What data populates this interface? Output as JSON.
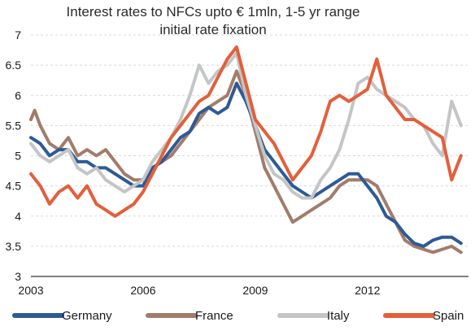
{
  "chart_data": {
    "type": "line",
    "title": "Interest rates to NFCs  upto € 1mln,  1-5 yr range",
    "subtitle": "initial  rate fixation",
    "xlabel": "",
    "ylabel": "",
    "x_ticks": [
      "2003",
      "2006",
      "2009",
      "2012"
    ],
    "y_ticks": [
      "3",
      "3.5",
      "4",
      "4.5",
      "5",
      "5.5",
      "6",
      "6.5",
      "7"
    ],
    "xlim": [
      2003.0,
      2014.7
    ],
    "ylim": [
      3,
      7
    ],
    "grid": "horizontal",
    "legend_position": "bottom",
    "series": [
      {
        "name": "Germany",
        "color": "#2e5a96",
        "points": [
          [
            2003.0,
            5.3
          ],
          [
            2003.25,
            5.2
          ],
          [
            2003.5,
            5.0
          ],
          [
            2003.75,
            5.1
          ],
          [
            2004.0,
            5.1
          ],
          [
            2004.25,
            4.9
          ],
          [
            2004.5,
            4.9
          ],
          [
            2004.75,
            4.8
          ],
          [
            2005.0,
            4.8
          ],
          [
            2005.25,
            4.7
          ],
          [
            2005.5,
            4.6
          ],
          [
            2005.75,
            4.5
          ],
          [
            2006.0,
            4.5
          ],
          [
            2006.25,
            4.8
          ],
          [
            2006.5,
            4.9
          ],
          [
            2006.75,
            5.1
          ],
          [
            2007.0,
            5.3
          ],
          [
            2007.25,
            5.4
          ],
          [
            2007.5,
            5.7
          ],
          [
            2007.75,
            5.8
          ],
          [
            2008.0,
            5.7
          ],
          [
            2008.25,
            5.8
          ],
          [
            2008.5,
            6.2
          ],
          [
            2008.75,
            5.9
          ],
          [
            2009.0,
            5.5
          ],
          [
            2009.25,
            5.1
          ],
          [
            2009.5,
            4.9
          ],
          [
            2009.75,
            4.7
          ],
          [
            2010.0,
            4.5
          ],
          [
            2010.25,
            4.4
          ],
          [
            2010.5,
            4.3
          ],
          [
            2010.75,
            4.4
          ],
          [
            2011.0,
            4.5
          ],
          [
            2011.25,
            4.6
          ],
          [
            2011.5,
            4.7
          ],
          [
            2011.75,
            4.7
          ],
          [
            2012.0,
            4.5
          ],
          [
            2012.25,
            4.3
          ],
          [
            2012.5,
            4.0
          ],
          [
            2012.75,
            3.9
          ],
          [
            2013.0,
            3.7
          ],
          [
            2013.25,
            3.55
          ],
          [
            2013.5,
            3.5
          ],
          [
            2013.75,
            3.6
          ],
          [
            2014.0,
            3.65
          ],
          [
            2014.25,
            3.65
          ],
          [
            2014.5,
            3.55
          ]
        ]
      },
      {
        "name": "France",
        "color": "#a27c6b",
        "points": [
          [
            2003.0,
            5.6
          ],
          [
            2003.1,
            5.75
          ],
          [
            2003.25,
            5.5
          ],
          [
            2003.5,
            5.2
          ],
          [
            2003.75,
            5.1
          ],
          [
            2004.0,
            5.3
          ],
          [
            2004.25,
            5.0
          ],
          [
            2004.5,
            5.1
          ],
          [
            2004.75,
            5.0
          ],
          [
            2005.0,
            5.1
          ],
          [
            2005.25,
            4.9
          ],
          [
            2005.5,
            4.7
          ],
          [
            2005.75,
            4.6
          ],
          [
            2006.0,
            4.6
          ],
          [
            2006.25,
            4.8
          ],
          [
            2006.5,
            4.9
          ],
          [
            2006.75,
            5.0
          ],
          [
            2007.0,
            5.2
          ],
          [
            2007.25,
            5.4
          ],
          [
            2007.5,
            5.6
          ],
          [
            2007.75,
            5.8
          ],
          [
            2008.0,
            5.9
          ],
          [
            2008.25,
            6.0
          ],
          [
            2008.5,
            6.4
          ],
          [
            2008.75,
            6.0
          ],
          [
            2009.0,
            5.4
          ],
          [
            2009.25,
            4.8
          ],
          [
            2009.5,
            4.5
          ],
          [
            2009.75,
            4.2
          ],
          [
            2010.0,
            3.9
          ],
          [
            2010.25,
            4.0
          ],
          [
            2010.5,
            4.1
          ],
          [
            2010.75,
            4.2
          ],
          [
            2011.0,
            4.3
          ],
          [
            2011.25,
            4.5
          ],
          [
            2011.5,
            4.6
          ],
          [
            2011.75,
            4.6
          ],
          [
            2012.0,
            4.6
          ],
          [
            2012.25,
            4.5
          ],
          [
            2012.5,
            4.2
          ],
          [
            2012.75,
            3.9
          ],
          [
            2013.0,
            3.6
          ],
          [
            2013.25,
            3.5
          ],
          [
            2013.5,
            3.45
          ],
          [
            2013.75,
            3.4
          ],
          [
            2014.0,
            3.45
          ],
          [
            2014.25,
            3.5
          ],
          [
            2014.5,
            3.4
          ]
        ]
      },
      {
        "name": "Italy",
        "color": "#c3c5c7",
        "points": [
          [
            2003.0,
            5.2
          ],
          [
            2003.25,
            5.0
          ],
          [
            2003.5,
            4.9
          ],
          [
            2003.75,
            5.0
          ],
          [
            2004.0,
            5.1
          ],
          [
            2004.25,
            4.8
          ],
          [
            2004.5,
            4.7
          ],
          [
            2004.75,
            4.8
          ],
          [
            2005.0,
            4.6
          ],
          [
            2005.25,
            4.5
          ],
          [
            2005.5,
            4.4
          ],
          [
            2005.75,
            4.5
          ],
          [
            2006.0,
            4.6
          ],
          [
            2006.25,
            4.9
          ],
          [
            2006.5,
            5.1
          ],
          [
            2006.75,
            5.3
          ],
          [
            2007.0,
            5.6
          ],
          [
            2007.25,
            6.0
          ],
          [
            2007.5,
            6.5
          ],
          [
            2007.75,
            6.2
          ],
          [
            2008.0,
            6.4
          ],
          [
            2008.25,
            6.5
          ],
          [
            2008.5,
            6.7
          ],
          [
            2008.75,
            6.0
          ],
          [
            2009.0,
            5.5
          ],
          [
            2009.25,
            5.0
          ],
          [
            2009.5,
            4.7
          ],
          [
            2009.75,
            4.6
          ],
          [
            2010.0,
            4.4
          ],
          [
            2010.25,
            4.3
          ],
          [
            2010.5,
            4.3
          ],
          [
            2010.75,
            4.6
          ],
          [
            2011.0,
            4.8
          ],
          [
            2011.25,
            5.1
          ],
          [
            2011.5,
            5.6
          ],
          [
            2011.75,
            6.2
          ],
          [
            2012.0,
            6.3
          ],
          [
            2012.25,
            6.1
          ],
          [
            2012.5,
            6.0
          ],
          [
            2012.75,
            5.9
          ],
          [
            2013.0,
            5.8
          ],
          [
            2013.25,
            5.6
          ],
          [
            2013.5,
            5.5
          ],
          [
            2013.75,
            5.2
          ],
          [
            2014.0,
            5.0
          ],
          [
            2014.25,
            5.9
          ],
          [
            2014.5,
            5.5
          ]
        ]
      },
      {
        "name": "Spain",
        "color": "#e35f3b",
        "points": [
          [
            2003.0,
            4.7
          ],
          [
            2003.25,
            4.5
          ],
          [
            2003.5,
            4.2
          ],
          [
            2003.75,
            4.4
          ],
          [
            2004.0,
            4.5
          ],
          [
            2004.25,
            4.3
          ],
          [
            2004.5,
            4.5
          ],
          [
            2004.75,
            4.2
          ],
          [
            2005.0,
            4.1
          ],
          [
            2005.25,
            4.0
          ],
          [
            2005.5,
            4.1
          ],
          [
            2005.75,
            4.2
          ],
          [
            2006.0,
            4.4
          ],
          [
            2006.25,
            4.7
          ],
          [
            2006.5,
            5.0
          ],
          [
            2006.75,
            5.3
          ],
          [
            2007.0,
            5.5
          ],
          [
            2007.25,
            5.7
          ],
          [
            2007.5,
            5.9
          ],
          [
            2007.75,
            6.0
          ],
          [
            2008.0,
            6.3
          ],
          [
            2008.25,
            6.6
          ],
          [
            2008.5,
            6.8
          ],
          [
            2008.75,
            6.2
          ],
          [
            2009.0,
            5.6
          ],
          [
            2009.25,
            5.4
          ],
          [
            2009.5,
            5.2
          ],
          [
            2009.75,
            4.9
          ],
          [
            2010.0,
            4.6
          ],
          [
            2010.25,
            4.8
          ],
          [
            2010.5,
            5.0
          ],
          [
            2010.75,
            5.4
          ],
          [
            2011.0,
            5.9
          ],
          [
            2011.25,
            6.0
          ],
          [
            2011.5,
            5.9
          ],
          [
            2011.75,
            6.0
          ],
          [
            2012.0,
            6.1
          ],
          [
            2012.25,
            6.6
          ],
          [
            2012.5,
            6.0
          ],
          [
            2012.75,
            5.8
          ],
          [
            2013.0,
            5.6
          ],
          [
            2013.25,
            5.6
          ],
          [
            2013.5,
            5.5
          ],
          [
            2013.75,
            5.4
          ],
          [
            2014.0,
            5.3
          ],
          [
            2014.25,
            4.6
          ],
          [
            2014.5,
            5.0
          ]
        ]
      }
    ]
  }
}
